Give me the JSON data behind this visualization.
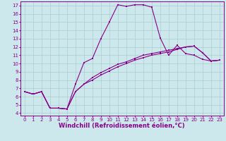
{
  "xlabel": "Windchill (Refroidissement éolien,°C)",
  "xlim": [
    -0.5,
    23.5
  ],
  "ylim": [
    3.7,
    17.5
  ],
  "xticks": [
    0,
    1,
    2,
    3,
    4,
    5,
    6,
    7,
    8,
    9,
    10,
    11,
    12,
    13,
    14,
    15,
    16,
    17,
    18,
    19,
    20,
    21,
    22,
    23
  ],
  "yticks": [
    4,
    5,
    6,
    7,
    8,
    9,
    10,
    11,
    12,
    13,
    14,
    15,
    16,
    17
  ],
  "bg_color": "#cce8ec",
  "grid_color": "#aacccc",
  "line_color": "#880088",
  "line1_x": [
    0,
    1,
    2,
    3,
    4,
    5,
    6,
    7,
    8,
    9,
    10,
    11,
    12,
    13,
    14,
    15,
    16,
    17,
    18,
    19,
    20,
    21,
    22,
    23
  ],
  "line1_y": [
    6.6,
    6.3,
    6.6,
    4.6,
    4.6,
    4.5,
    6.6,
    7.5,
    8.0,
    8.6,
    9.1,
    9.6,
    10.0,
    10.4,
    10.7,
    11.0,
    11.2,
    11.4,
    11.7,
    12.0,
    12.1,
    11.3,
    10.3,
    10.4
  ],
  "line2_x": [
    0,
    1,
    2,
    3,
    4,
    5,
    6,
    7,
    8,
    9,
    10,
    11,
    12,
    13,
    14,
    15,
    16,
    17,
    18,
    19,
    20,
    21,
    22,
    23
  ],
  "line2_y": [
    6.6,
    6.3,
    6.6,
    4.6,
    4.6,
    4.5,
    7.5,
    10.1,
    10.6,
    13.0,
    15.0,
    17.1,
    16.9,
    17.1,
    17.1,
    16.8,
    13.1,
    11.0,
    12.2,
    11.2,
    11.0,
    10.5,
    10.3,
    10.4
  ],
  "line3_x": [
    0,
    1,
    2,
    3,
    4,
    5,
    6,
    7,
    8,
    9,
    10,
    11,
    12,
    13,
    14,
    15,
    16,
    17,
    18,
    19,
    20,
    21,
    22,
    23
  ],
  "line3_y": [
    6.6,
    6.3,
    6.6,
    4.6,
    4.6,
    4.5,
    6.6,
    7.5,
    8.3,
    8.9,
    9.4,
    9.9,
    10.2,
    10.6,
    11.0,
    11.2,
    11.4,
    11.6,
    11.8,
    12.0,
    12.1,
    11.3,
    10.3,
    10.4
  ],
  "tick_fontsize": 5.0,
  "xlabel_fontsize": 6.0
}
